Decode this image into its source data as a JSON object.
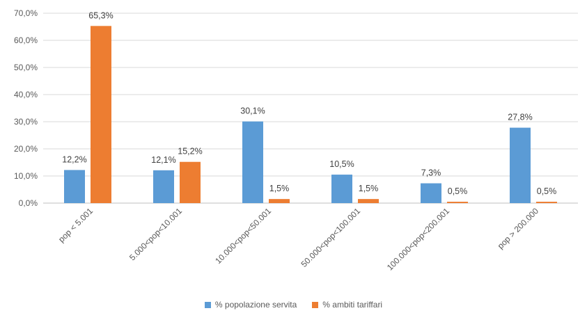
{
  "chart_data": {
    "type": "bar",
    "title": "",
    "xlabel": "",
    "ylabel": "",
    "ylim": [
      0,
      70
    ],
    "y_ticks": [
      "0,0%",
      "10,0%",
      "20,0%",
      "30,0%",
      "40,0%",
      "50,0%",
      "60,0%",
      "70,0%"
    ],
    "grid": true,
    "legend_position": "bottom",
    "categories": [
      "pop < 5.001",
      "5.000<pop<10.001",
      "10.000<pop<50.001",
      "50.000<pop<100.001",
      "100.000<pop<200.001",
      "pop > 200.000"
    ],
    "series": [
      {
        "name": "% popolazione servita",
        "color": "#5B9BD5",
        "values": [
          12.2,
          12.1,
          30.1,
          10.5,
          7.3,
          27.8
        ],
        "labels": [
          "12,2%",
          "12,1%",
          "30,1%",
          "10,5%",
          "7,3%",
          "27,8%"
        ]
      },
      {
        "name": "% ambiti tariffari",
        "color": "#ED7D31",
        "values": [
          65.3,
          15.2,
          1.5,
          1.5,
          0.5,
          0.5
        ],
        "labels": [
          "65,3%",
          "15,2%",
          "1,5%",
          "1,5%",
          "0,5%",
          "0,5%"
        ]
      }
    ]
  },
  "legend": {
    "items": [
      {
        "label": "% popolazione servita",
        "color": "#5B9BD5"
      },
      {
        "label": "% ambiti tariffari",
        "color": "#ED7D31"
      }
    ]
  }
}
